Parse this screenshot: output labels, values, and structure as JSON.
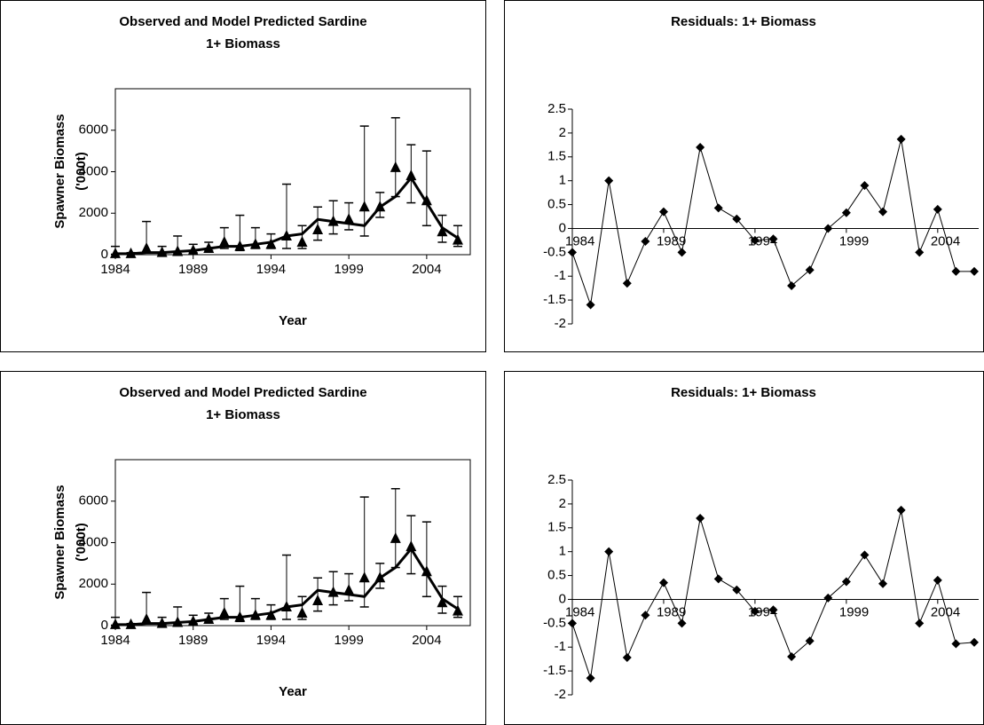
{
  "chart_data": [
    {
      "type": "line",
      "title": [
        "Observed and Model Predicted Sardine",
        "1+ Biomass"
      ],
      "y_label": [
        "Spawner Biomass",
        "('000t)"
      ],
      "x_label": "Year",
      "x": [
        1984,
        1985,
        1986,
        1987,
        1988,
        1989,
        1990,
        1991,
        1992,
        1993,
        1994,
        1995,
        1996,
        1997,
        1998,
        1999,
        2000,
        2001,
        2002,
        2003,
        2004,
        2005,
        2006
      ],
      "xlim": [
        1984,
        2006.8
      ],
      "xticks": [
        1984,
        1989,
        1994,
        1999,
        2004
      ],
      "ylim": [
        0,
        8000
      ],
      "yticks": [
        0,
        2000,
        4000,
        6000
      ],
      "series": [
        {
          "color": "#000000",
          "marker": "triangle",
          "values": [
            50,
            50,
            300,
            100,
            150,
            200,
            300,
            600,
            400,
            500,
            500,
            900,
            600,
            1200,
            1600,
            1700,
            2300,
            2300,
            4200,
            3800,
            2600,
            1100,
            700
          ],
          "upper": [
            400,
            100,
            1600,
            400,
            900,
            500,
            600,
            1300,
            1900,
            1300,
            1000,
            3400,
            1400,
            2300,
            2600,
            2500,
            6200,
            3000,
            6600,
            5300,
            5000,
            1900,
            1400
          ],
          "lower": [
            20,
            20,
            100,
            30,
            50,
            100,
            200,
            300,
            200,
            300,
            300,
            300,
            300,
            700,
            1000,
            1200,
            900,
            1800,
            2800,
            2500,
            1400,
            600,
            400
          ]
        },
        {
          "color": "#000000",
          "marker": "none",
          "values": [
            50,
            50,
            100,
            100,
            150,
            200,
            300,
            400,
            400,
            500,
            600,
            900,
            1000,
            1700,
            1600,
            1500,
            1400,
            2300,
            2800,
            3700,
            2500,
            1300,
            800
          ]
        }
      ]
    },
    {
      "type": "residual",
      "title": "Residuals: 1+ Biomass",
      "x": [
        1984,
        1985,
        1986,
        1987,
        1988,
        1989,
        1990,
        1991,
        1992,
        1993,
        1994,
        1995,
        1996,
        1997,
        1998,
        1999,
        2000,
        2001,
        2002,
        2003,
        2004,
        2005,
        2006
      ],
      "xlim": [
        1984,
        2006
      ],
      "xticks": [
        1984,
        1989,
        1994,
        1999,
        2004
      ],
      "ylim": [
        -2,
        2.5
      ],
      "yticks": [
        -2,
        -1.5,
        -1,
        -0.5,
        0,
        0.5,
        1,
        1.5,
        2,
        2.5
      ],
      "color": "#000000",
      "values": [
        -0.5,
        -1.6,
        1.0,
        -1.15,
        -0.27,
        0.35,
        -0.5,
        1.7,
        0.43,
        0.2,
        -0.25,
        -0.22,
        -1.2,
        -0.87,
        0.0,
        0.33,
        0.9,
        0.35,
        1.87,
        -0.5,
        0.4,
        -0.9,
        -0.9
      ]
    },
    {
      "type": "line",
      "title": [
        "Observed and Model Predicted Sardine",
        "1+ Biomass"
      ],
      "y_label": [
        "Spawner Biomass",
        "('000t)"
      ],
      "x_label": "Year",
      "x": [
        1984,
        1985,
        1986,
        1987,
        1988,
        1989,
        1990,
        1991,
        1992,
        1993,
        1994,
        1995,
        1996,
        1997,
        1998,
        1999,
        2000,
        2001,
        2002,
        2003,
        2004,
        2005,
        2006
      ],
      "xlim": [
        1984,
        2006.8
      ],
      "xticks": [
        1984,
        1989,
        1994,
        1999,
        2004
      ],
      "ylim": [
        0,
        8000
      ],
      "yticks": [
        0,
        2000,
        4000,
        6000
      ],
      "series": [
        {
          "color": "#000000",
          "marker": "triangle",
          "values": [
            50,
            50,
            300,
            100,
            150,
            200,
            300,
            600,
            400,
            500,
            500,
            900,
            600,
            1200,
            1600,
            1700,
            2300,
            2300,
            4200,
            3800,
            2600,
            1100,
            700
          ],
          "upper": [
            400,
            100,
            1600,
            400,
            900,
            500,
            600,
            1300,
            1900,
            1300,
            1000,
            3400,
            1400,
            2300,
            2600,
            2500,
            6200,
            3000,
            6600,
            5300,
            5000,
            1900,
            1400
          ],
          "lower": [
            20,
            20,
            100,
            30,
            50,
            100,
            200,
            300,
            200,
            300,
            300,
            300,
            300,
            700,
            1000,
            1200,
            900,
            1800,
            2800,
            2500,
            1400,
            600,
            400
          ]
        },
        {
          "color": "#000000",
          "marker": "none",
          "values": [
            50,
            50,
            100,
            100,
            150,
            200,
            300,
            400,
            400,
            500,
            600,
            900,
            1000,
            1700,
            1600,
            1500,
            1400,
            2300,
            2800,
            3700,
            2500,
            1300,
            800
          ]
        }
      ]
    },
    {
      "type": "residual",
      "title": "Residuals: 1+ Biomass",
      "x": [
        1984,
        1985,
        1986,
        1987,
        1988,
        1989,
        1990,
        1991,
        1992,
        1993,
        1994,
        1995,
        1996,
        1997,
        1998,
        1999,
        2000,
        2001,
        2002,
        2003,
        2004,
        2005,
        2006
      ],
      "xlim": [
        1984,
        2006
      ],
      "xticks": [
        1984,
        1989,
        1994,
        1999,
        2004
      ],
      "ylim": [
        -2,
        2.5
      ],
      "yticks": [
        -2,
        -1.5,
        -1,
        -0.5,
        0,
        0.5,
        1,
        1.5,
        2,
        2.5
      ],
      "color": "#000000",
      "values": [
        -0.5,
        -1.65,
        1.0,
        -1.22,
        -0.33,
        0.35,
        -0.5,
        1.7,
        0.43,
        0.2,
        -0.25,
        -0.22,
        -1.2,
        -0.87,
        0.03,
        0.37,
        0.93,
        0.33,
        1.87,
        -0.5,
        0.4,
        -0.93,
        -0.9
      ]
    }
  ]
}
